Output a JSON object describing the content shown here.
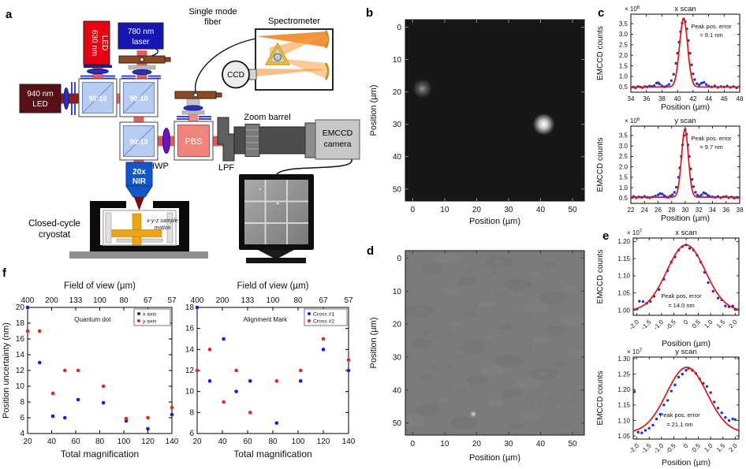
{
  "figure": {
    "panel_labels": {
      "a": "a",
      "b": "b",
      "c": "c",
      "d": "d",
      "e": "e",
      "f": "f"
    }
  },
  "setup": {
    "led630_l1": "630 nm",
    "led630_l2": "LED",
    "laser780_l1": "780 nm",
    "laser780_l2": "laser",
    "led940_l1": "940 nm",
    "led940_l2": "LED",
    "bs_ratio": "90:10",
    "pbs": "PBS",
    "hwp": "HWP",
    "lpf": "LPF",
    "zoom_barrel": "Zoom barrel",
    "emccd_l1": "EMCCD",
    "emccd_l2": "camera",
    "objective_l1": "20x",
    "objective_l2": "NIR",
    "cryostat_l1": "Closed-cycle",
    "cryostat_l2": "cryostat",
    "motion_l1": "x-y-z sample",
    "motion_l2": "motion",
    "fiber_l1": "Single mode",
    "fiber_l2": "fiber",
    "spectrometer": "Spectrometer",
    "ccd": "CCD"
  },
  "chart_data": [
    {
      "id": "b",
      "type": "heatmap",
      "xlabel": "Position (µm)",
      "ylabel": "Position (µm)",
      "lim": [
        -2.3,
        53.7
      ],
      "ticks": [
        0,
        10,
        20,
        30,
        40,
        50
      ],
      "bg": "#171717",
      "tick_color": "#8a8a8a",
      "mark_color": "#ededed",
      "noise": false,
      "spots": [
        {
          "x": 3,
          "y": 19,
          "glow_radius": 3.0,
          "color": "#b4b4b4",
          "core_opacity": 0.8,
          "glow_opacity": 0.4
        },
        {
          "x": 41,
          "y": 30,
          "glow_radius": 3.4,
          "color": "#ffffff",
          "core_opacity": 1.0,
          "glow_opacity": 0.75
        }
      ]
    },
    {
      "id": "cx",
      "type": "line",
      "title": "x scan",
      "exponent_mant": "× 10",
      "exponent_pow": "6",
      "xlabel": "Position (µm)",
      "ylabel": "EMCCD counts",
      "xlim": [
        34,
        48
      ],
      "ylim": [
        0.25,
        3.95
      ],
      "rotate_x": false,
      "xticks": [
        34,
        36,
        38,
        40,
        42,
        44,
        46,
        48
      ],
      "xtick_labels": [
        "34",
        "36",
        "38",
        "40",
        "42",
        "44",
        "46",
        "48"
      ],
      "yticks": [
        0.5,
        1.0,
        1.5,
        2.0,
        2.5,
        3.0,
        3.5
      ],
      "ytick_labels": [
        "0.5",
        "1.0",
        "1.5",
        "2.0",
        "2.5",
        "3.0",
        "3.5"
      ],
      "annotation_l1": "Peak pos. error",
      "annotation_l2": "= 9.1 nm",
      "point_color": "#2633cc",
      "curve_color": "#e81212",
      "curve": {
        "center": 40.78,
        "sigma": 0.52,
        "amplitude": 3.25,
        "baseline": 0.5
      },
      "points": [
        [
          34,
          0.48
        ],
        [
          34.3,
          0.5
        ],
        [
          34.6,
          0.46
        ],
        [
          34.9,
          0.52
        ],
        [
          35.2,
          0.5
        ],
        [
          35.5,
          0.47
        ],
        [
          35.8,
          0.52
        ],
        [
          36.1,
          0.5
        ],
        [
          36.4,
          0.54
        ],
        [
          36.7,
          0.52
        ],
        [
          37,
          0.56
        ],
        [
          37.3,
          0.68
        ],
        [
          37.5,
          0.7
        ],
        [
          37.7,
          0.64
        ],
        [
          38,
          0.55
        ],
        [
          38.3,
          0.5
        ],
        [
          38.6,
          0.54
        ],
        [
          38.9,
          0.62
        ],
        [
          39.2,
          0.8
        ],
        [
          39.5,
          1.1
        ],
        [
          39.8,
          1.62
        ],
        [
          40,
          2.1
        ],
        [
          40.2,
          2.62
        ],
        [
          40.4,
          3.12
        ],
        [
          40.6,
          3.52
        ],
        [
          40.8,
          3.72
        ],
        [
          41,
          3.6
        ],
        [
          41.2,
          3.25
        ],
        [
          41.4,
          2.7
        ],
        [
          41.6,
          2.1
        ],
        [
          41.8,
          1.55
        ],
        [
          42,
          1.12
        ],
        [
          42.2,
          0.85
        ],
        [
          42.5,
          0.66
        ],
        [
          42.8,
          0.6
        ],
        [
          43.1,
          0.68
        ],
        [
          43.4,
          0.72
        ],
        [
          43.7,
          0.62
        ],
        [
          44,
          0.54
        ],
        [
          44.4,
          0.5
        ],
        [
          44.8,
          0.55
        ],
        [
          45.2,
          0.48
        ],
        [
          45.6,
          0.52
        ],
        [
          46,
          0.5
        ],
        [
          46.4,
          0.54
        ],
        [
          46.8,
          0.48
        ],
        [
          47.2,
          0.52
        ],
        [
          47.6,
          0.46
        ],
        [
          48,
          0.52
        ]
      ]
    },
    {
      "id": "cy",
      "type": "line",
      "title": "y scan",
      "exponent_mant": "× 10",
      "exponent_pow": "6",
      "xlabel": "Position (µm)",
      "ylabel": "EMCCD counts",
      "xlim": [
        22,
        38
      ],
      "ylim": [
        0.25,
        3.95
      ],
      "rotate_x": false,
      "xticks": [
        22,
        24,
        26,
        28,
        30,
        32,
        34,
        36,
        38
      ],
      "xtick_labels": [
        "22",
        "24",
        "26",
        "28",
        "30",
        "32",
        "34",
        "36",
        "38"
      ],
      "yticks": [
        0.5,
        1.0,
        1.5,
        2.0,
        2.5,
        3.0,
        3.5
      ],
      "ytick_labels": [
        "0.5",
        "1.0",
        "1.5",
        "2.0",
        "2.5",
        "3.0",
        "3.5"
      ],
      "annotation_l1": "Peak pos. error",
      "annotation_l2": "= 9.7 nm",
      "point_color": "#2633cc",
      "curve_color": "#e81212",
      "curve": {
        "center": 29.95,
        "sigma": 0.5,
        "amplitude": 3.25,
        "baseline": 0.55
      },
      "points": [
        [
          22,
          0.54
        ],
        [
          22.4,
          0.58
        ],
        [
          22.8,
          0.52
        ],
        [
          23.2,
          0.56
        ],
        [
          23.6,
          0.54
        ],
        [
          24,
          0.58
        ],
        [
          24.4,
          0.54
        ],
        [
          24.8,
          0.52
        ],
        [
          25.2,
          0.56
        ],
        [
          25.6,
          0.6
        ],
        [
          26,
          0.66
        ],
        [
          26.3,
          0.72
        ],
        [
          26.6,
          0.7
        ],
        [
          26.9,
          0.62
        ],
        [
          27.2,
          0.56
        ],
        [
          27.5,
          0.54
        ],
        [
          27.8,
          0.6
        ],
        [
          28.1,
          0.66
        ],
        [
          28.4,
          0.78
        ],
        [
          28.7,
          1.02
        ],
        [
          29,
          1.5
        ],
        [
          29.2,
          1.95
        ],
        [
          29.4,
          2.5
        ],
        [
          29.6,
          3.05
        ],
        [
          29.8,
          3.5
        ],
        [
          30,
          3.78
        ],
        [
          30.2,
          3.55
        ],
        [
          30.4,
          3.05
        ],
        [
          30.6,
          2.5
        ],
        [
          30.8,
          1.9
        ],
        [
          31,
          1.4
        ],
        [
          31.2,
          1.05
        ],
        [
          31.5,
          0.78
        ],
        [
          31.8,
          0.64
        ],
        [
          32.1,
          0.58
        ],
        [
          32.4,
          0.66
        ],
        [
          32.7,
          0.76
        ],
        [
          33,
          0.72
        ],
        [
          33.3,
          0.64
        ],
        [
          33.6,
          0.58
        ],
        [
          34,
          0.56
        ],
        [
          34.4,
          0.54
        ],
        [
          34.8,
          0.58
        ],
        [
          35.2,
          0.52
        ],
        [
          35.6,
          0.56
        ],
        [
          36,
          0.58
        ],
        [
          36.4,
          0.52
        ],
        [
          36.8,
          0.56
        ],
        [
          37.2,
          0.5
        ],
        [
          37.6,
          0.54
        ],
        [
          38,
          0.55
        ]
      ]
    },
    {
      "id": "d",
      "type": "heatmap",
      "xlabel": "Position (µm)",
      "ylabel": "Position (µm)",
      "lim": [
        -2.3,
        53.7
      ],
      "ticks": [
        0,
        10,
        20,
        30,
        40,
        50
      ],
      "bg": "#7b7b7b",
      "tick_color": "#3c3c3c",
      "mark_color": "#eeeeee",
      "noise": true,
      "marks": [
        [
          -2.3,
          0.3,
          24.6,
          0.3
        ],
        [
          28.3,
          0.3,
          53.7,
          0.3
        ],
        [
          -2.3,
          52.4,
          24.2,
          52.4
        ],
        [
          28,
          52.4,
          53.7,
          52.4
        ],
        [
          0.3,
          -2.3,
          0.3,
          24.6
        ],
        [
          0.3,
          28.3,
          0.3,
          53.7
        ],
        [
          52.5,
          -2.3,
          52.5,
          24.9
        ],
        [
          52.5,
          28.6,
          52.5,
          53.7
        ]
      ],
      "dot": [
        19,
        47.3
      ]
    },
    {
      "id": "ex",
      "type": "line",
      "title": "x scan",
      "exponent_mant": "× 10",
      "exponent_pow": "7",
      "xlabel": "Position (µm)",
      "ylabel": "EMCCD counts",
      "xlim": [
        -2.15,
        2.15
      ],
      "ylim": [
        0.985,
        1.21
      ],
      "rotate_x": true,
      "xticks": [
        -2,
        -1.5,
        -1,
        -0.5,
        0,
        0.5,
        1,
        1.5,
        2
      ],
      "xtick_labels": [
        "-2.0",
        "-1.5",
        "-1.0",
        "-0.5",
        "0",
        "0.5",
        "1.0",
        "1.5",
        "2.0"
      ],
      "yticks": [
        1.0,
        1.05,
        1.1,
        1.15,
        1.2
      ],
      "ytick_labels": [
        "1.00",
        "1.05",
        "1.10",
        "1.15",
        "1.20"
      ],
      "annotation_l1": "Peak pos. error",
      "annotation_l2": "= 14.0 nm",
      "point_color": "#2633cc",
      "curve_color": "#e81212",
      "curve": {
        "center": 0,
        "sigma": 0.78,
        "amplitude": 0.192,
        "baseline": 0.998
      },
      "points": [
        [
          -2,
          1.003
        ],
        [
          -1.9,
          1.026
        ],
        [
          -1.75,
          1.025
        ],
        [
          -1.6,
          1.02
        ],
        [
          -1.45,
          1.025
        ],
        [
          -1.3,
          1.04
        ],
        [
          -1.1,
          1.06
        ],
        [
          -0.9,
          1.09
        ],
        [
          -0.75,
          1.115
        ],
        [
          -0.6,
          1.14
        ],
        [
          -0.45,
          1.155
        ],
        [
          -0.3,
          1.175
        ],
        [
          -0.15,
          1.185
        ],
        [
          0,
          1.19
        ],
        [
          0.15,
          1.18
        ],
        [
          0.3,
          1.175
        ],
        [
          0.45,
          1.16
        ],
        [
          0.6,
          1.14
        ],
        [
          0.75,
          1.11
        ],
        [
          0.9,
          1.08
        ],
        [
          1.1,
          1.055
        ],
        [
          1.3,
          1.035
        ],
        [
          1.45,
          1.03
        ],
        [
          1.6,
          1.012
        ],
        [
          1.75,
          1.01
        ],
        [
          1.9,
          1.012
        ],
        [
          2,
          1.002
        ]
      ]
    },
    {
      "id": "ey",
      "type": "line",
      "title": "y scan",
      "exponent_mant": "× 10",
      "exponent_pow": "7",
      "xlabel": "Position (µm)",
      "ylabel": "EMCCD counts",
      "xlim": [
        -2.15,
        2.15
      ],
      "ylim": [
        1.04,
        1.305
      ],
      "rotate_x": true,
      "xticks": [
        -2,
        -1.5,
        -1,
        -0.5,
        0,
        0.5,
        1,
        1.5,
        2
      ],
      "xtick_labels": [
        "-2.0",
        "-1.5",
        "-1.0",
        "-0.5",
        "0",
        "0.5",
        "1.0",
        "1.5",
        "2.0"
      ],
      "yticks": [
        1.05,
        1.1,
        1.15,
        1.2,
        1.25,
        1.3
      ],
      "ytick_labels": [
        "1.05",
        "1.10",
        "1.15",
        "1.20",
        "1.25",
        "1.30"
      ],
      "annotation_l1": "Peak pos. error",
      "annotation_l2": "= 21.1 nm",
      "point_color": "#2633cc",
      "curve_color": "#e81212",
      "curve": {
        "center": 0.03,
        "sigma": 0.82,
        "amplitude": 0.212,
        "baseline": 1.06
      },
      "points": [
        [
          -2.1,
          1.193
        ],
        [
          -1.95,
          1.062
        ],
        [
          -1.8,
          1.06
        ],
        [
          -1.65,
          1.068
        ],
        [
          -1.5,
          1.075
        ],
        [
          -1.35,
          1.085
        ],
        [
          -1.2,
          1.105
        ],
        [
          -1.05,
          1.12
        ],
        [
          -0.9,
          1.15
        ],
        [
          -0.75,
          1.165
        ],
        [
          -0.6,
          1.195
        ],
        [
          -0.45,
          1.215
        ],
        [
          -0.3,
          1.24
        ],
        [
          -0.15,
          1.25
        ],
        [
          0,
          1.262
        ],
        [
          0.1,
          1.268
        ],
        [
          0.25,
          1.262
        ],
        [
          0.4,
          1.252
        ],
        [
          0.55,
          1.235
        ],
        [
          0.7,
          1.22
        ],
        [
          0.85,
          1.21
        ],
        [
          1,
          1.19
        ],
        [
          1.15,
          1.16
        ],
        [
          1.3,
          1.14
        ],
        [
          1.45,
          1.125
        ],
        [
          1.6,
          1.11
        ],
        [
          1.75,
          1.1
        ],
        [
          1.9,
          1.105
        ],
        [
          2,
          1.103
        ]
      ]
    },
    {
      "id": "fq",
      "type": "scatter",
      "annotation": "Quantum dot",
      "top_axis_label": "Field of view (µm)",
      "xlabel": "Total magnification",
      "ylabel": "Position uncertainty (nm)",
      "xlim": [
        20,
        140
      ],
      "ylim": [
        4,
        20
      ],
      "xticks": [
        20,
        40,
        60,
        80,
        100,
        120,
        140
      ],
      "top_labels": [
        "400",
        "200",
        "133",
        "100",
        "80",
        "67",
        "57"
      ],
      "yticks": [
        4,
        6,
        8,
        10,
        12,
        14,
        16,
        18,
        20
      ],
      "series": [
        {
          "name": "x axis",
          "color": "#1a1ae8",
          "points": [
            [
              20,
              20
            ],
            [
              30,
              13
            ],
            [
              41,
              6.2
            ],
            [
              51,
              6.0
            ],
            [
              62,
              8.3
            ],
            [
              83,
              7.9
            ],
            [
              102,
              5.6
            ],
            [
              120,
              4.6
            ],
            [
              140,
              6.4
            ]
          ]
        },
        {
          "name": "y axis",
          "color": "#ee2222",
          "points": [
            [
              20,
              17
            ],
            [
              30,
              17
            ],
            [
              41,
              9.1
            ],
            [
              51,
              12
            ],
            [
              62,
              12
            ],
            [
              83,
              10
            ],
            [
              102,
              5.9
            ],
            [
              120,
              6.0
            ],
            [
              140,
              7.3
            ]
          ]
        }
      ]
    },
    {
      "id": "fa",
      "type": "scatter",
      "annotation": "Alignment Mark",
      "top_axis_label": "Field of view (µm)",
      "xlabel": "Total magnification",
      "ylabel": null,
      "xlim": [
        20,
        140
      ],
      "ylim": [
        6,
        18
      ],
      "xticks": [
        20,
        40,
        60,
        80,
        100,
        120,
        140
      ],
      "top_labels": [
        "400",
        "200",
        "133",
        "100",
        "80",
        "67",
        "57"
      ],
      "yticks": [
        6,
        8,
        10,
        12,
        14,
        16,
        18
      ],
      "series": [
        {
          "name": "Cross #1",
          "color": "#1a1ae8",
          "points": [
            [
              20,
              18
            ],
            [
              30,
              11
            ],
            [
              41,
              15
            ],
            [
              51,
              10
            ],
            [
              62,
              11
            ],
            [
              83,
              7
            ],
            [
              102,
              11
            ],
            [
              120,
              14
            ],
            [
              140,
              12
            ]
          ]
        },
        {
          "name": "Cross #2",
          "color": "#ee2222",
          "points": [
            [
              20,
              12
            ],
            [
              30,
              14
            ],
            [
              41,
              9
            ],
            [
              51,
              12
            ],
            [
              62,
              8
            ],
            [
              83,
              11
            ],
            [
              102,
              12
            ],
            [
              120,
              15
            ],
            [
              140,
              13
            ]
          ]
        }
      ]
    }
  ]
}
